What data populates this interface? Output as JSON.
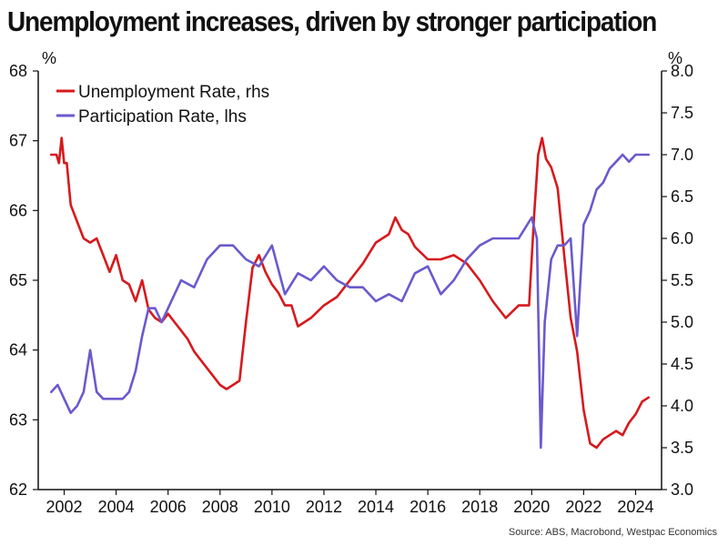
{
  "chart_data": {
    "type": "line",
    "title": "Unemployment increases, driven by stronger participation",
    "source": "Source: ABS, Macrobond, Westpac Economics",
    "left_axis": {
      "unit": "%",
      "range": [
        62,
        68
      ],
      "ticks": [
        "62",
        "63",
        "64",
        "65",
        "66",
        "67",
        "68"
      ]
    },
    "right_axis": {
      "unit": "%",
      "range": [
        3.0,
        8.0
      ],
      "ticks": [
        "3.0",
        "3.5",
        "4.0",
        "4.5",
        "5.0",
        "5.5",
        "6.0",
        "6.5",
        "7.0",
        "7.5",
        "8.0"
      ]
    },
    "x_axis": {
      "range": [
        2001.0,
        2025.0
      ],
      "ticks": [
        "2002",
        "2004",
        "2006",
        "2008",
        "2010",
        "2012",
        "2014",
        "2016",
        "2018",
        "2020",
        "2022",
        "2024"
      ]
    },
    "grid": false,
    "legend": "top-left",
    "colors": {
      "unemployment": "#d7191c",
      "participation": "#6a5acd"
    },
    "series": [
      {
        "name": "Unemployment Rate, rhs",
        "axis": "right",
        "color": "#d7191c",
        "x": [
          2001.5,
          2001.7,
          2001.8,
          2001.9,
          2002.0,
          2002.1,
          2002.25,
          2002.5,
          2002.75,
          2003.0,
          2003.25,
          2003.5,
          2003.75,
          2004.0,
          2004.25,
          2004.5,
          2004.75,
          2005.0,
          2005.25,
          2005.5,
          2005.75,
          2006.0,
          2006.25,
          2006.5,
          2006.75,
          2007.0,
          2007.25,
          2007.5,
          2007.75,
          2008.0,
          2008.25,
          2008.5,
          2008.75,
          2009.0,
          2009.25,
          2009.5,
          2009.75,
          2010.0,
          2010.25,
          2010.5,
          2010.75,
          2011.0,
          2011.5,
          2012.0,
          2012.5,
          2013.0,
          2013.5,
          2014.0,
          2014.5,
          2014.75,
          2015.0,
          2015.25,
          2015.5,
          2016.0,
          2016.5,
          2017.0,
          2017.5,
          2018.0,
          2018.5,
          2019.0,
          2019.5,
          2019.9,
          2020.1,
          2020.25,
          2020.4,
          2020.55,
          2020.75,
          2021.0,
          2021.25,
          2021.5,
          2021.75,
          2022.0,
          2022.25,
          2022.5,
          2022.75,
          2023.0,
          2023.25,
          2023.5,
          2023.75,
          2024.0,
          2024.25,
          2024.5
        ],
        "values": [
          7.0,
          7.0,
          6.9,
          7.2,
          6.9,
          6.9,
          6.4,
          6.2,
          6.0,
          5.95,
          6.0,
          5.8,
          5.6,
          5.8,
          5.5,
          5.45,
          5.25,
          5.5,
          5.15,
          5.05,
          5.0,
          5.1,
          5.0,
          4.9,
          4.8,
          4.65,
          4.55,
          4.45,
          4.35,
          4.25,
          4.2,
          4.25,
          4.3,
          5.0,
          5.65,
          5.8,
          5.6,
          5.45,
          5.35,
          5.2,
          5.2,
          4.95,
          5.05,
          5.2,
          5.3,
          5.5,
          5.7,
          5.95,
          6.05,
          6.25,
          6.1,
          6.05,
          5.9,
          5.75,
          5.75,
          5.8,
          5.7,
          5.5,
          5.25,
          5.05,
          5.2,
          5.2,
          6.3,
          7.0,
          7.2,
          6.95,
          6.85,
          6.6,
          5.8,
          5.05,
          4.65,
          3.95,
          3.55,
          3.5,
          3.6,
          3.65,
          3.7,
          3.65,
          3.8,
          3.9,
          4.05,
          4.1
        ]
      },
      {
        "name": "Participation Rate, lhs",
        "axis": "left",
        "color": "#6a5acd",
        "x": [
          2001.5,
          2001.75,
          2002.0,
          2002.25,
          2002.5,
          2002.75,
          2003.0,
          2003.25,
          2003.5,
          2003.75,
          2004.0,
          2004.25,
          2004.5,
          2004.75,
          2005.0,
          2005.25,
          2005.5,
          2005.75,
          2006.0,
          2006.5,
          2007.0,
          2007.5,
          2008.0,
          2008.5,
          2009.0,
          2009.5,
          2010.0,
          2010.5,
          2011.0,
          2011.5,
          2012.0,
          2012.5,
          2013.0,
          2013.5,
          2014.0,
          2014.5,
          2015.0,
          2015.5,
          2016.0,
          2016.5,
          2017.0,
          2017.5,
          2018.0,
          2018.5,
          2019.0,
          2019.5,
          2020.0,
          2020.2,
          2020.35,
          2020.5,
          2020.75,
          2021.0,
          2021.25,
          2021.5,
          2021.75,
          2022.0,
          2022.25,
          2022.5,
          2022.75,
          2023.0,
          2023.25,
          2023.5,
          2023.75,
          2024.0,
          2024.25,
          2024.5
        ],
        "values": [
          63.4,
          63.5,
          63.3,
          63.1,
          63.2,
          63.4,
          64.0,
          63.4,
          63.3,
          63.3,
          63.3,
          63.3,
          63.4,
          63.7,
          64.2,
          64.6,
          64.6,
          64.4,
          64.6,
          65.0,
          64.9,
          65.3,
          65.5,
          65.5,
          65.3,
          65.2,
          65.5,
          64.8,
          65.1,
          65.0,
          65.2,
          65.0,
          64.9,
          64.9,
          64.7,
          64.8,
          64.7,
          65.1,
          65.2,
          64.8,
          65.0,
          65.3,
          65.5,
          65.6,
          65.6,
          65.6,
          65.9,
          65.6,
          62.6,
          64.4,
          65.3,
          65.5,
          65.5,
          65.6,
          64.2,
          65.8,
          66.0,
          66.3,
          66.4,
          66.6,
          66.7,
          66.8,
          66.7,
          66.8,
          66.8,
          66.8
        ]
      }
    ]
  }
}
